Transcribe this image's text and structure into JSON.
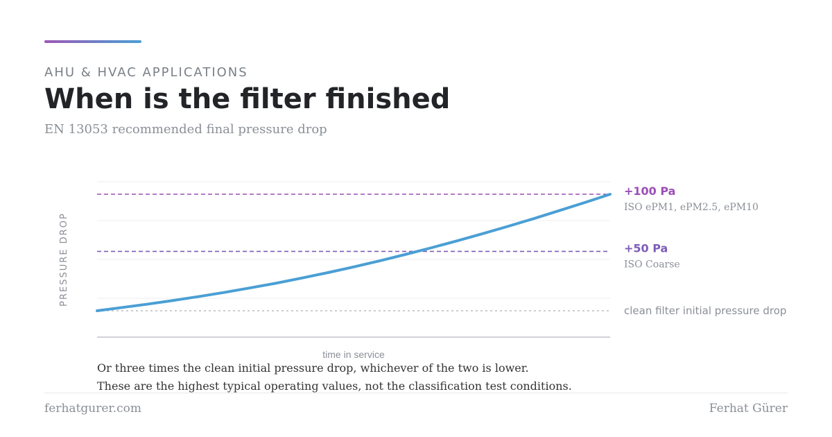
{
  "header": {
    "eyebrow": "AHU & HVAC APPLICATIONS",
    "title": "When is the filter finished",
    "subtitle": "EN 13053 recommended final pressure drop"
  },
  "chart_data": {
    "type": "line",
    "xlabel": "time in service",
    "ylabel": "PRESSURE DROP",
    "grid": true,
    "series": [
      {
        "values": [
          0,
          0.026,
          0.053,
          0.082,
          0.113,
          0.146,
          0.181,
          0.218,
          0.258,
          0.3,
          0.345,
          0.392,
          0.442,
          0.494,
          0.548,
          0.605,
          0.663,
          0.724,
          0.787,
          0.851,
          0.917
        ]
      }
    ],
    "reference_lines": [
      {
        "label": "+100 Pa",
        "note": "ISO ePM1, ePM2.5, ePM10",
        "color": "#9b4fb5",
        "level": 0.917
      },
      {
        "label": "+50 Pa",
        "note": "ISO Coarse",
        "color": "#7e5cb8",
        "level": 0.467
      },
      {
        "label": "clean filter initial pressure drop",
        "color": "#b8bcc2",
        "level": 0
      }
    ],
    "colors": {
      "curve": "#4a9fd4",
      "axis": "#bfc3c8",
      "grid": "#eceef0"
    }
  },
  "notes": {
    "line1": "Or three times the clean initial pressure drop, whichever of the two is lower.",
    "line2": "These are the highest typical operating values, not the classification test conditions."
  },
  "footer": {
    "site": "ferhatgurer.com",
    "author": "Ferhat Gürer"
  }
}
